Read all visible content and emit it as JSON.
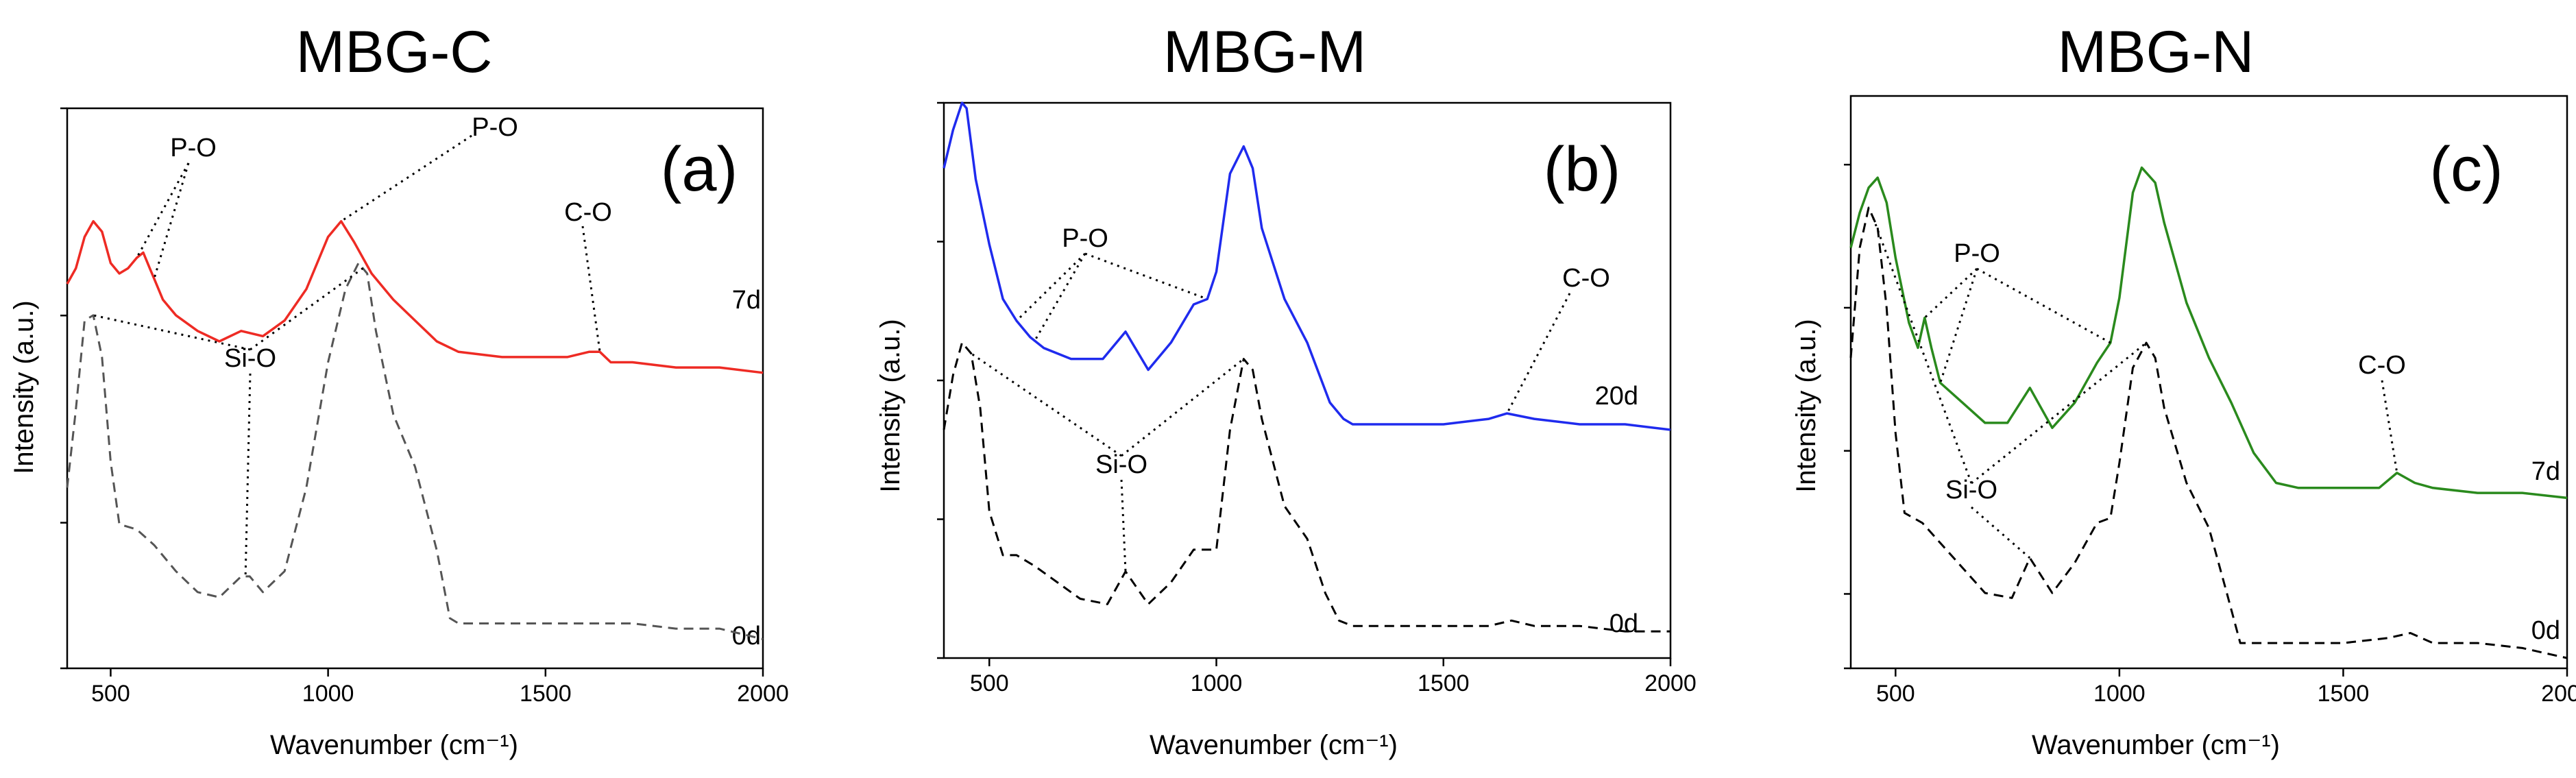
{
  "chart_data": [
    {
      "type": "line",
      "title": "MBG-C",
      "panel_label": "(a)",
      "xlabel": "Wavenumber (cm⁻¹)",
      "ylabel": "Intensity (a.u.)",
      "xlim": [
        400,
        2000
      ],
      "ylim": [
        0,
        1
      ],
      "xticks": [
        500,
        1000,
        1500,
        2000
      ],
      "series": [
        {
          "name": "7d",
          "color": "#ee2b24",
          "style": "solid",
          "x": [
            400,
            420,
            440,
            460,
            480,
            500,
            520,
            540,
            560,
            575,
            590,
            600,
            620,
            650,
            700,
            750,
            800,
            850,
            900,
            950,
            1000,
            1030,
            1060,
            1100,
            1150,
            1200,
            1250,
            1300,
            1400,
            1500,
            1550,
            1600,
            1625,
            1650,
            1700,
            1800,
            1900,
            2000
          ],
          "y": [
            0.69,
            0.72,
            0.78,
            0.81,
            0.79,
            0.73,
            0.71,
            0.72,
            0.74,
            0.75,
            0.72,
            0.7,
            0.66,
            0.63,
            0.6,
            0.58,
            0.6,
            0.59,
            0.62,
            0.68,
            0.78,
            0.81,
            0.77,
            0.71,
            0.66,
            0.62,
            0.58,
            0.56,
            0.55,
            0.55,
            0.55,
            0.56,
            0.56,
            0.54,
            0.54,
            0.53,
            0.53,
            0.52
          ]
        },
        {
          "name": "0d",
          "color": "#555555",
          "style": "dashed",
          "x": [
            400,
            420,
            440,
            460,
            480,
            500,
            520,
            560,
            600,
            650,
            700,
            750,
            800,
            820,
            850,
            900,
            950,
            1000,
            1040,
            1070,
            1090,
            1110,
            1150,
            1200,
            1250,
            1280,
            1300,
            1400,
            1500,
            1600,
            1700,
            1800,
            1900,
            2000
          ],
          "y": [
            0.3,
            0.45,
            0.62,
            0.63,
            0.55,
            0.35,
            0.23,
            0.22,
            0.19,
            0.14,
            0.1,
            0.09,
            0.13,
            0.13,
            0.1,
            0.14,
            0.3,
            0.54,
            0.68,
            0.73,
            0.71,
            0.6,
            0.44,
            0.34,
            0.18,
            0.05,
            0.04,
            0.04,
            0.04,
            0.04,
            0.04,
            0.03,
            0.03,
            0.01
          ]
        }
      ],
      "annotations": [
        "P-O",
        "P-O",
        "C-O",
        "Si-O"
      ]
    },
    {
      "type": "line",
      "title": "MBG-M",
      "panel_label": "(b)",
      "xlabel": "Wavenumber (cm⁻¹)",
      "ylabel": "Intensity (a.u.)",
      "xlim": [
        400,
        2000
      ],
      "ylim": [
        0,
        1
      ],
      "xticks": [
        500,
        1000,
        1500,
        2000
      ],
      "series": [
        {
          "name": "20d",
          "color": "#1f2bee",
          "style": "solid",
          "x": [
            400,
            420,
            440,
            450,
            470,
            500,
            530,
            560,
            590,
            620,
            680,
            750,
            800,
            850,
            900,
            950,
            980,
            1000,
            1030,
            1060,
            1080,
            1100,
            1150,
            1200,
            1250,
            1280,
            1300,
            1400,
            1500,
            1600,
            1640,
            1700,
            1800,
            1900,
            2000
          ],
          "y": [
            0.88,
            0.95,
            1.0,
            0.99,
            0.86,
            0.74,
            0.64,
            0.6,
            0.57,
            0.55,
            0.53,
            0.53,
            0.58,
            0.51,
            0.56,
            0.63,
            0.64,
            0.69,
            0.87,
            0.92,
            0.88,
            0.77,
            0.64,
            0.56,
            0.45,
            0.42,
            0.41,
            0.41,
            0.41,
            0.42,
            0.43,
            0.42,
            0.41,
            0.41,
            0.4
          ]
        },
        {
          "name": "0d",
          "color": "#000000",
          "style": "dashed",
          "x": [
            400,
            420,
            440,
            460,
            480,
            500,
            530,
            560,
            600,
            650,
            700,
            760,
            800,
            850,
            900,
            950,
            1000,
            1030,
            1060,
            1080,
            1100,
            1150,
            1200,
            1240,
            1270,
            1300,
            1400,
            1500,
            1600,
            1650,
            1700,
            1800,
            1900,
            2000
          ],
          "y": [
            0.4,
            0.5,
            0.56,
            0.54,
            0.44,
            0.25,
            0.17,
            0.17,
            0.15,
            0.12,
            0.09,
            0.08,
            0.14,
            0.08,
            0.12,
            0.18,
            0.18,
            0.4,
            0.53,
            0.51,
            0.42,
            0.26,
            0.2,
            0.1,
            0.05,
            0.04,
            0.04,
            0.04,
            0.04,
            0.05,
            0.04,
            0.04,
            0.03,
            0.03
          ]
        }
      ],
      "annotations": [
        "P-O",
        "C-O",
        "Si-O"
      ]
    },
    {
      "type": "line",
      "title": "MBG-N",
      "panel_label": "(c)",
      "xlabel": "Wavenumber (cm⁻¹)",
      "ylabel": "Intensity (a.u.)",
      "xlim": [
        400,
        2000
      ],
      "ylim": [
        0,
        1
      ],
      "xticks": [
        500,
        1000,
        1500,
        2000
      ],
      "series": [
        {
          "name": "7d",
          "color": "#2a8a1d",
          "style": "solid",
          "x": [
            400,
            420,
            440,
            460,
            480,
            500,
            530,
            550,
            565,
            580,
            600,
            650,
            700,
            750,
            800,
            850,
            900,
            950,
            980,
            1000,
            1030,
            1050,
            1080,
            1100,
            1150,
            1200,
            1250,
            1300,
            1350,
            1400,
            1500,
            1580,
            1620,
            1660,
            1700,
            1800,
            1900,
            2000
          ],
          "y": [
            0.82,
            0.89,
            0.94,
            0.96,
            0.91,
            0.8,
            0.67,
            0.62,
            0.68,
            0.62,
            0.55,
            0.51,
            0.47,
            0.47,
            0.54,
            0.46,
            0.51,
            0.59,
            0.63,
            0.72,
            0.93,
            0.98,
            0.95,
            0.87,
            0.71,
            0.6,
            0.51,
            0.41,
            0.35,
            0.34,
            0.34,
            0.34,
            0.37,
            0.35,
            0.34,
            0.33,
            0.33,
            0.32
          ]
        },
        {
          "name": "0d",
          "color": "#000000",
          "style": "dashed",
          "x": [
            400,
            420,
            440,
            460,
            480,
            500,
            520,
            560,
            600,
            650,
            700,
            760,
            800,
            850,
            900,
            950,
            980,
            1000,
            1030,
            1060,
            1080,
            1100,
            1150,
            1200,
            1240,
            1270,
            1300,
            1400,
            1500,
            1600,
            1650,
            1700,
            1800,
            1900,
            2000
          ],
          "y": [
            0.6,
            0.82,
            0.9,
            0.86,
            0.7,
            0.45,
            0.29,
            0.27,
            0.23,
            0.18,
            0.13,
            0.12,
            0.2,
            0.13,
            0.19,
            0.27,
            0.28,
            0.39,
            0.58,
            0.63,
            0.6,
            0.5,
            0.35,
            0.26,
            0.13,
            0.03,
            0.03,
            0.03,
            0.03,
            0.04,
            0.05,
            0.03,
            0.03,
            0.02,
            0.0
          ]
        }
      ],
      "annotations": [
        "P-O",
        "C-O",
        "Si-O"
      ]
    }
  ]
}
